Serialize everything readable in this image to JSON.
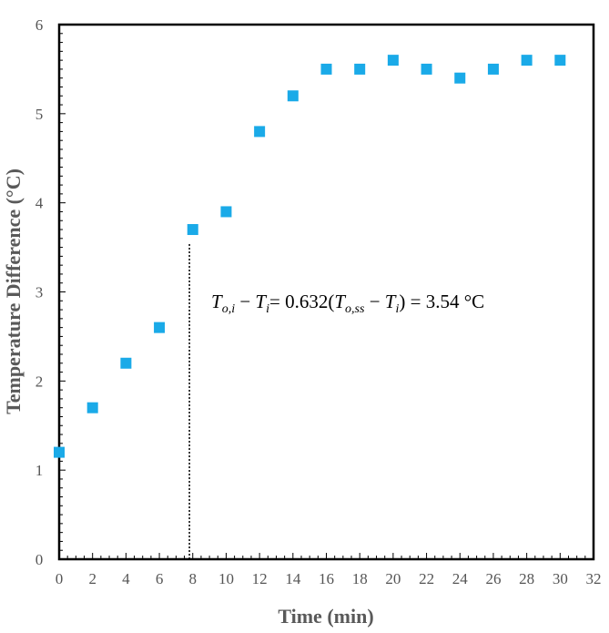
{
  "chart_data": {
    "type": "scatter",
    "title": "",
    "xlabel": "Time (min)",
    "ylabel": "Temperature Difference (°C)",
    "xlim": [
      0,
      32
    ],
    "ylim": [
      0,
      6
    ],
    "xticks": [
      0,
      2,
      4,
      6,
      8,
      10,
      12,
      14,
      16,
      18,
      20,
      22,
      24,
      26,
      28,
      30,
      32
    ],
    "yticks": [
      0,
      1,
      2,
      3,
      4,
      5,
      6
    ],
    "grid": false,
    "marker": "square",
    "marker_color": "#1AAAE8",
    "series": [
      {
        "name": "Temperature Difference",
        "x": [
          0,
          2,
          4,
          6,
          8,
          10,
          12,
          14,
          16,
          18,
          20,
          22,
          24,
          26,
          28,
          30
        ],
        "y": [
          1.2,
          1.7,
          2.2,
          2.6,
          3.7,
          3.9,
          4.8,
          5.2,
          5.5,
          5.5,
          5.6,
          5.5,
          5.4,
          5.5,
          5.6,
          5.6
        ]
      }
    ],
    "reference_line": {
      "x": 7.8,
      "y_top": 3.54,
      "style": "dotted"
    },
    "annotation": {
      "part1": "T",
      "sub1": "o,i",
      "part2": " − ",
      "part3": "T",
      "sub3": "i",
      "part4": "= 0.632(",
      "part5": "T",
      "sub5": "o,ss",
      "part6": " − ",
      "part7": "T",
      "sub7": "i",
      "part8": ") = 3.54 °C"
    }
  }
}
